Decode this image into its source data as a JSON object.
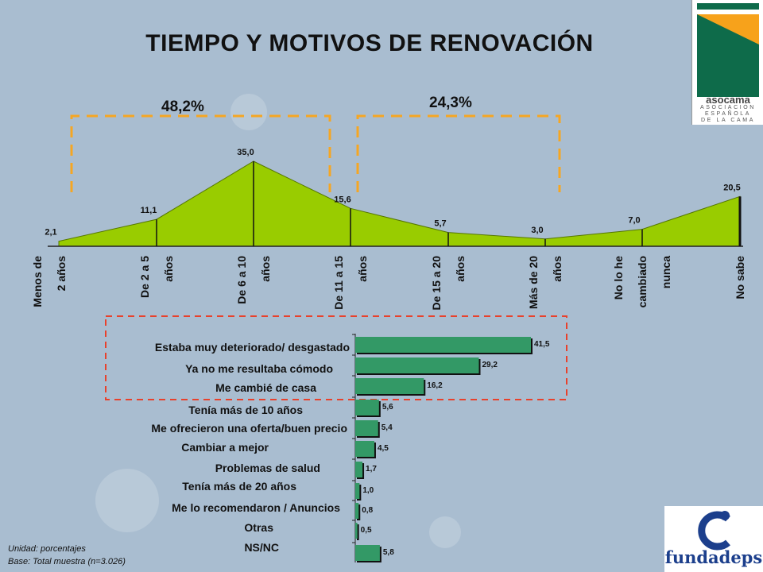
{
  "title": "TIEMPO Y MOTIVOS DE RENOVACIÓN",
  "brackets": [
    {
      "label": "48,2%"
    },
    {
      "label": "24,3%"
    }
  ],
  "colors": {
    "area_fill": "#99cc00",
    "bar_fill": "#339966",
    "bracket_orange": "#f5a623",
    "highlight_red": "#e8412c",
    "asocama_green": "#0e6b4a",
    "asocama_orange": "#f7a21b"
  },
  "chart_data": [
    {
      "type": "area",
      "categories": [
        [
          "Menos de",
          "2 años"
        ],
        [
          "De 2 a 5",
          "años"
        ],
        [
          "De 6 a 10",
          "años"
        ],
        [
          "De 11 a 15",
          "años"
        ],
        [
          "De 15 a 20",
          "años"
        ],
        [
          "Más de 20",
          "años"
        ],
        [
          "No lo he",
          "cambiado",
          "nunca"
        ],
        [
          "No sabe"
        ]
      ],
      "values": [
        2.1,
        11.1,
        35.0,
        15.6,
        5.7,
        3.0,
        7.0,
        20.5
      ],
      "value_labels": [
        "2,1",
        "11,1",
        "35,0",
        "15,6",
        "5,7",
        "3,0",
        "7,0",
        "20,5"
      ],
      "ylim": [
        0,
        35
      ]
    },
    {
      "type": "bar",
      "orientation": "horizontal",
      "categories": [
        "Estaba muy deteriorado/ desgastado",
        "Ya no me resultaba cómodo",
        "Me cambié de casa",
        "Tenía más de  10  años",
        "Me ofrecieron una oferta/buen precio",
        "Cambiar a mejor",
        "Problemas de salud",
        "Tenía más de 20 años",
        "Me lo recomendaron / Anuncios",
        "Otras",
        "NS/NC"
      ],
      "values": [
        41.5,
        29.2,
        16.2,
        5.6,
        5.4,
        4.5,
        1.7,
        1.0,
        0.8,
        0.5,
        5.8
      ],
      "value_labels": [
        "41,5",
        "29,2",
        "16,2",
        "5,6",
        "5,4",
        "4,5",
        "1,7",
        "1,0",
        "0,8",
        "0,5",
        "5,8"
      ],
      "xlim": [
        0,
        41.5
      ]
    }
  ],
  "notes": {
    "unit": "Unidad: porcentajes",
    "base": "Base: Total muestra (n=3.026)"
  },
  "logos": {
    "asocama_name": "asocama",
    "asocama_sub": [
      "ASOCIACIÓN",
      "ESPAÑOLA",
      "DE LA CAMA"
    ],
    "fundadeps": "fundadeps"
  }
}
